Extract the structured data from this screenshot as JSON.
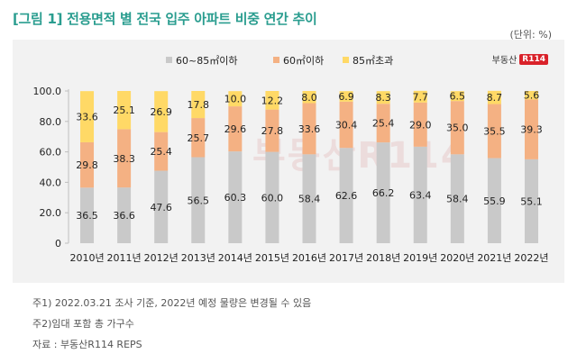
{
  "header": {
    "title": "[그림 1] 전용면적 별 전국 입주 아파트 비중 연간 추이",
    "unit": "(단위: %)"
  },
  "brand": {
    "name": "부동산",
    "badge": "R114",
    "watermark": "부동산R114"
  },
  "colors": {
    "title": "#2a9d8f",
    "series_60_85": "#c9c9c9",
    "series_under60": "#f4b183",
    "series_over85": "#ffd966",
    "panel_bg": "#f2f2f2"
  },
  "chart_data": {
    "type": "bar",
    "stacked": true,
    "title": "",
    "xlabel": "",
    "ylabel": "",
    "ylim": [
      0,
      100
    ],
    "yticks": [
      "0",
      "20.0",
      "40.0",
      "60.0",
      "80.0",
      "100.0"
    ],
    "categories": [
      "2010년",
      "2011년",
      "2012년",
      "2013년",
      "2014년",
      "2015년",
      "2016년",
      "2017년",
      "2018년",
      "2019년",
      "2020년",
      "2021년",
      "2022년"
    ],
    "series": [
      {
        "name": "60~85㎡이하",
        "values": [
          36.5,
          36.6,
          47.6,
          56.5,
          60.3,
          60.0,
          58.4,
          62.6,
          66.2,
          63.4,
          58.4,
          55.9,
          55.1
        ]
      },
      {
        "name": "60㎡이하",
        "values": [
          29.8,
          38.3,
          25.4,
          25.7,
          29.6,
          27.8,
          33.6,
          30.4,
          25.4,
          29.0,
          35.0,
          35.5,
          39.3
        ]
      },
      {
        "name": "85㎡초과",
        "values": [
          33.6,
          25.1,
          26.9,
          17.8,
          10.0,
          12.2,
          8.0,
          6.9,
          8.3,
          7.7,
          6.5,
          8.7,
          5.6
        ]
      }
    ],
    "legend_position": "top-center"
  },
  "notes": [
    "주1) 2022.03.21 조사 기준, 2022년 예정 물량은 변경될 수 있음",
    "주2)임대 포함 총 가구수",
    "자료 : 부동산R114 REPS"
  ]
}
